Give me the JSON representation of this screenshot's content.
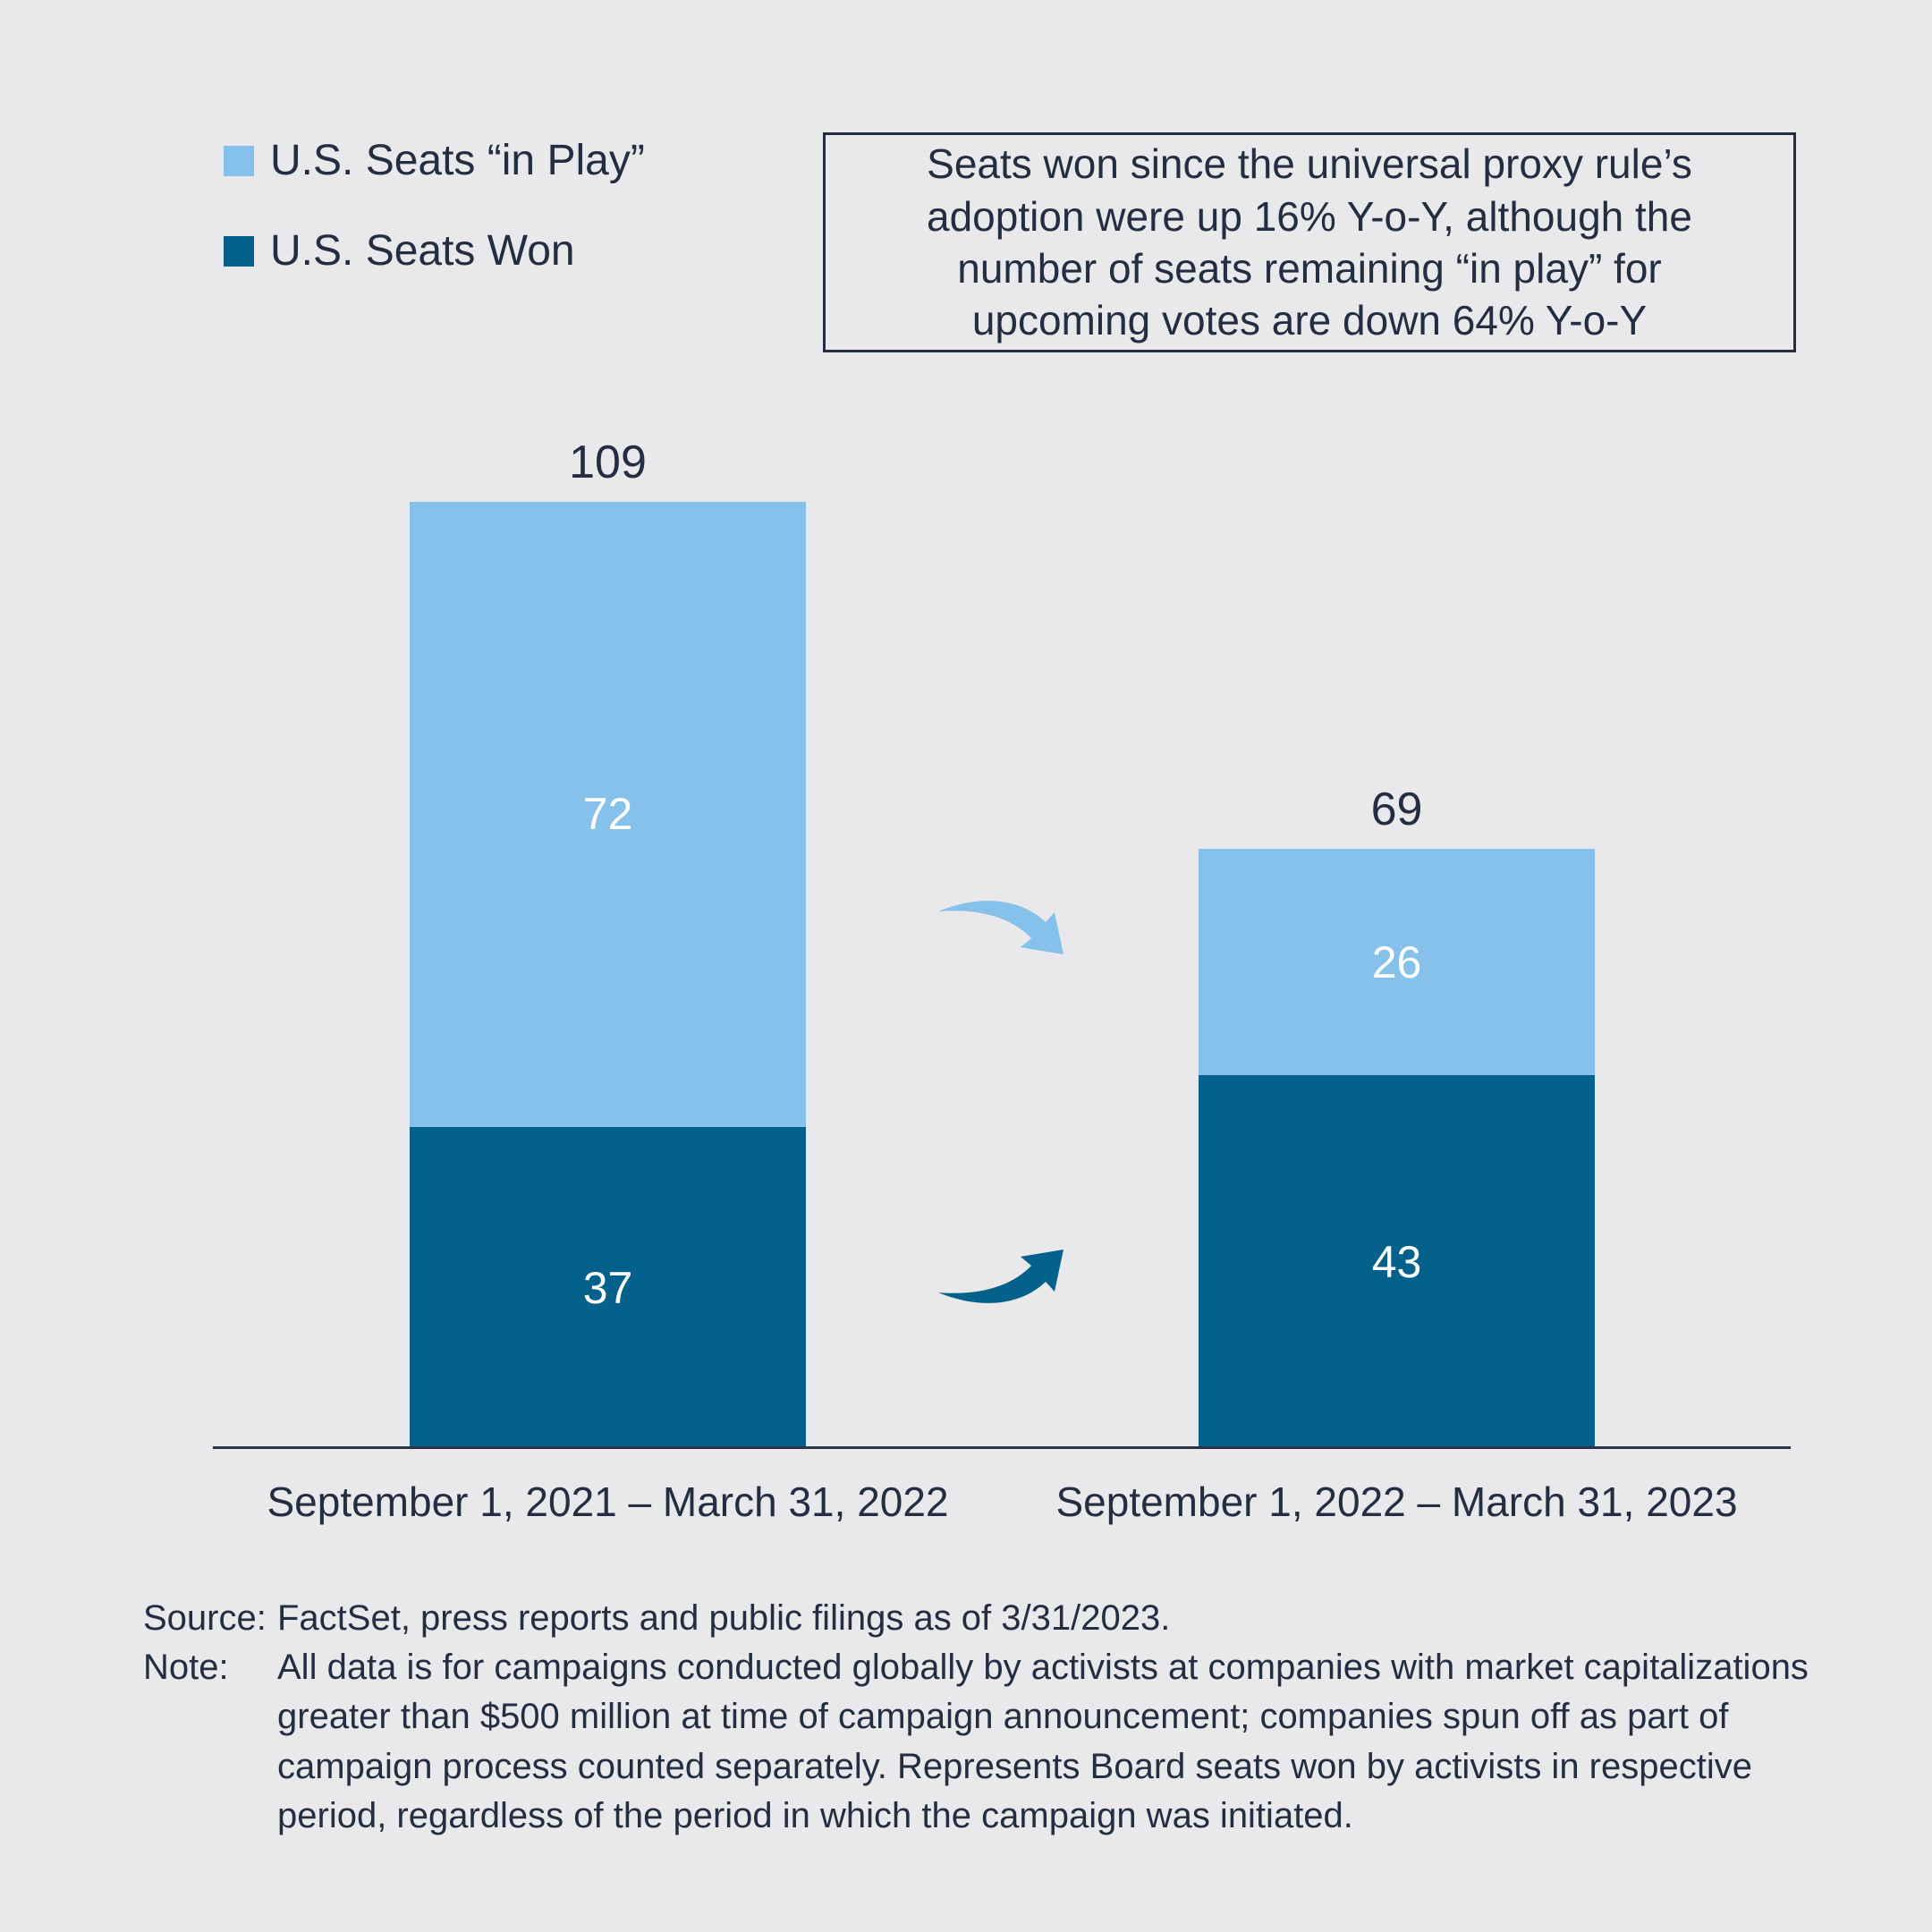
{
  "page": {
    "background": "#e9e9eb",
    "text_color": "#242e42",
    "axis_color": "#2a3245"
  },
  "legend": {
    "items": [
      {
        "label": "U.S. Seats “in Play”",
        "color": "#85c1ea"
      },
      {
        "label": "U.S. Seats Won",
        "color": "#03618c"
      }
    ]
  },
  "callout": {
    "text": "Seats won since the universal proxy rule’s adoption were up 16% Y-o-Y, although the number of seats remaining “in play” for upcoming votes are down 64% Y-o-Y"
  },
  "chart_data": {
    "type": "bar",
    "stacked": true,
    "categories": [
      "September 1, 2021 – March 31, 2022",
      "September 1, 2022 – March 31, 2023"
    ],
    "series": [
      {
        "name": "U.S. Seats Won",
        "color": "#03618c",
        "values": [
          37,
          43
        ]
      },
      {
        "name": "U.S. Seats “in Play”",
        "color": "#85c1ea",
        "values": [
          72,
          26
        ]
      }
    ],
    "totals": [
      109,
      69
    ],
    "ylim": [
      0,
      115
    ],
    "grid": false,
    "legend_position": "top-left",
    "annotations": [
      {
        "name": "in-play-decrease-arrow",
        "direction": "down-right",
        "color": "#85c1ea"
      },
      {
        "name": "seats-won-increase-arrow",
        "direction": "up-right",
        "color": "#03618c"
      }
    ]
  },
  "footer": {
    "source_label": "Source:",
    "source_text": "FactSet, press reports and public filings as of 3/31/2023.",
    "note_label": "Note:",
    "note_text": "All data is for campaigns conducted globally by activists at companies with market capitalizations greater than $500 million at time of campaign announcement; companies spun off as part of campaign process counted separately. Represents Board seats won by activists in respective period, regardless of the period in which the campaign was initiated."
  }
}
